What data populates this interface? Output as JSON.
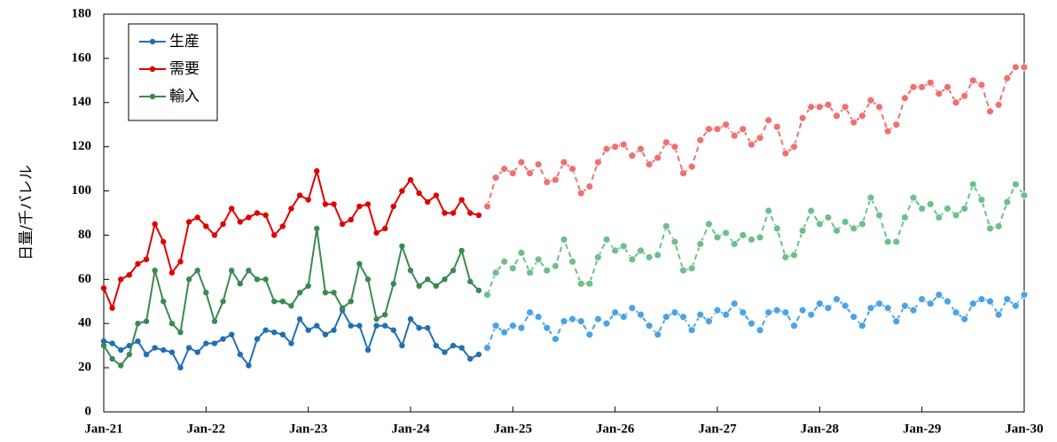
{
  "chart_data": {
    "type": "line",
    "ylabel": "日量/千バレル",
    "categories": [
      "Jan-21",
      null,
      null,
      null,
      null,
      null,
      null,
      null,
      null,
      null,
      null,
      null,
      "Jan-22",
      null,
      null,
      null,
      null,
      null,
      null,
      null,
      null,
      null,
      null,
      null,
      "Jan-23",
      null,
      null,
      null,
      null,
      null,
      null,
      null,
      null,
      null,
      null,
      null,
      "Jan-24",
      null,
      null,
      null,
      null,
      null,
      null,
      null,
      null,
      null,
      null,
      null,
      "Jan-25",
      null,
      null,
      null,
      null,
      null,
      null,
      null,
      null,
      null,
      null,
      null,
      "Jan-26",
      null,
      null,
      null,
      null,
      null,
      null,
      null,
      null,
      null,
      null,
      null,
      "Jan-27",
      null,
      null,
      null,
      null,
      null,
      null,
      null,
      null,
      null,
      null,
      null,
      "Jan-28",
      null,
      null,
      null,
      null,
      null,
      null,
      null,
      null,
      null,
      null,
      null,
      "Jan-29",
      null,
      null,
      null,
      null,
      null,
      null,
      null,
      null,
      null,
      null,
      null,
      "Jan-30"
    ],
    "ylim": [
      0,
      180
    ],
    "yticks": [
      0,
      20,
      40,
      60,
      80,
      100,
      120,
      140,
      160,
      180
    ],
    "legend": "upper left",
    "series": [
      {
        "name": "生産",
        "color": "#1f6fb5",
        "dashed": false,
        "values": [
          32,
          31,
          28,
          30,
          32,
          26,
          29,
          28,
          27,
          20,
          29,
          27,
          31,
          31,
          33,
          35,
          26,
          21,
          33,
          37,
          36,
          35,
          31,
          42,
          37,
          39,
          35,
          37,
          46,
          39,
          39,
          28,
          39,
          39,
          37,
          30,
          42,
          38,
          38,
          30,
          27,
          30,
          29,
          24,
          26,
          null,
          null,
          null,
          null,
          null,
          null,
          null,
          null,
          null,
          null,
          null,
          null,
          null,
          null,
          null,
          null,
          null,
          null,
          null,
          null,
          null,
          null,
          null,
          null,
          null,
          null,
          null,
          null,
          null,
          null,
          null,
          null,
          null,
          null,
          null,
          null,
          null,
          null,
          null,
          null,
          null,
          null,
          null,
          null,
          null,
          null,
          null,
          null,
          null,
          null,
          null,
          null,
          null,
          null,
          null,
          null,
          null,
          null,
          null,
          null,
          null,
          null,
          null,
          null
        ]
      },
      {
        "name": "需要",
        "color": "#e00000",
        "dashed": false,
        "values": [
          56,
          47,
          60,
          62,
          67,
          69,
          85,
          77,
          63,
          68,
          86,
          88,
          84,
          80,
          85,
          92,
          86,
          88,
          90,
          89,
          80,
          84,
          92,
          98,
          96,
          109,
          94,
          94,
          85,
          87,
          93,
          94,
          81,
          83,
          93,
          100,
          105,
          99,
          95,
          98,
          90,
          90,
          96,
          90,
          89,
          null,
          null,
          null,
          null,
          null,
          null,
          null,
          null,
          null,
          null,
          null,
          null,
          null,
          null,
          null,
          null,
          null,
          null,
          null,
          null,
          null,
          null,
          null,
          null,
          null,
          null,
          null,
          null,
          null,
          null,
          null,
          null,
          null,
          null,
          null,
          null,
          null,
          null,
          null,
          null,
          null,
          null,
          null,
          null,
          null,
          null,
          null,
          null,
          null,
          null,
          null,
          null,
          null,
          null,
          null,
          null,
          null,
          null,
          null,
          null,
          null,
          null,
          null,
          null
        ]
      },
      {
        "name": "輸入",
        "color": "#3a8a50",
        "dashed": false,
        "values": [
          30,
          24,
          21,
          26,
          40,
          41,
          64,
          50,
          40,
          36,
          60,
          64,
          54,
          41,
          50,
          64,
          58,
          64,
          60,
          60,
          50,
          50,
          48,
          54,
          57,
          83,
          54,
          54,
          47,
          50,
          67,
          60,
          42,
          44,
          58,
          75,
          64,
          57,
          60,
          57,
          60,
          64,
          73,
          59,
          55,
          null,
          null,
          null,
          null,
          null,
          null,
          null,
          null,
          null,
          null,
          null,
          null,
          null,
          null,
          null,
          null,
          null,
          null,
          null,
          null,
          null,
          null,
          null,
          null,
          null,
          null,
          null,
          null,
          null,
          null,
          null,
          null,
          null,
          null,
          null,
          null,
          null,
          null,
          null,
          null,
          null,
          null,
          null,
          null,
          null,
          null,
          null,
          null,
          null,
          null,
          null,
          null,
          null,
          null,
          null,
          null,
          null,
          null,
          null,
          null,
          null,
          null,
          null,
          null
        ]
      },
      {
        "color": "#4aa3e8",
        "dashed": true,
        "values": [
          null,
          null,
          null,
          null,
          null,
          null,
          null,
          null,
          null,
          null,
          null,
          null,
          null,
          null,
          null,
          null,
          null,
          null,
          null,
          null,
          null,
          null,
          null,
          null,
          null,
          null,
          null,
          null,
          null,
          null,
          null,
          null,
          null,
          null,
          null,
          null,
          null,
          null,
          null,
          null,
          null,
          null,
          null,
          null,
          null,
          29,
          39,
          36,
          39,
          38,
          45,
          43,
          38,
          33,
          41,
          42,
          41,
          35,
          42,
          40,
          45,
          43,
          47,
          44,
          39,
          35,
          43,
          45,
          43,
          37,
          44,
          41,
          46,
          44,
          49,
          45,
          40,
          37,
          45,
          46,
          45,
          39,
          46,
          44,
          49,
          47,
          51,
          48,
          43,
          39,
          47,
          49,
          47,
          41,
          48,
          46,
          51,
          49,
          53,
          50,
          45,
          42,
          49,
          51,
          50,
          44,
          51,
          48,
          53
        ]
      },
      {
        "color": "#f07070",
        "dashed": true,
        "values": [
          null,
          null,
          null,
          null,
          null,
          null,
          null,
          null,
          null,
          null,
          null,
          null,
          null,
          null,
          null,
          null,
          null,
          null,
          null,
          null,
          null,
          null,
          null,
          null,
          null,
          null,
          null,
          null,
          null,
          null,
          null,
          null,
          null,
          null,
          null,
          null,
          null,
          null,
          null,
          null,
          null,
          null,
          null,
          null,
          null,
          93,
          106,
          110,
          108,
          113,
          108,
          112,
          104,
          105,
          113,
          110,
          99,
          102,
          113,
          119,
          120,
          121,
          116,
          119,
          112,
          115,
          122,
          120,
          108,
          111,
          123,
          128,
          128,
          130,
          125,
          128,
          121,
          124,
          132,
          129,
          117,
          120,
          133,
          138,
          138,
          139,
          134,
          138,
          131,
          134,
          141,
          138,
          127,
          130,
          142,
          147,
          147,
          149,
          144,
          147,
          140,
          143,
          150,
          148,
          136,
          139,
          151,
          156,
          156
        ]
      },
      {
        "color": "#6cc08a",
        "dashed": true,
        "values": [
          null,
          null,
          null,
          null,
          null,
          null,
          null,
          null,
          null,
          null,
          null,
          null,
          null,
          null,
          null,
          null,
          null,
          null,
          null,
          null,
          null,
          null,
          null,
          null,
          null,
          null,
          null,
          null,
          null,
          null,
          null,
          null,
          null,
          null,
          null,
          null,
          null,
          null,
          null,
          null,
          null,
          null,
          null,
          null,
          null,
          53,
          63,
          68,
          65,
          72,
          63,
          69,
          64,
          66,
          78,
          68,
          58,
          58,
          70,
          78,
          73,
          75,
          69,
          73,
          70,
          71,
          84,
          77,
          64,
          65,
          76,
          85,
          79,
          81,
          76,
          80,
          78,
          79,
          91,
          83,
          70,
          71,
          82,
          91,
          85,
          88,
          82,
          86,
          83,
          85,
          97,
          89,
          77,
          77,
          88,
          97,
          92,
          94,
          88,
          92,
          89,
          92,
          103,
          96,
          83,
          84,
          95,
          103,
          98
        ]
      }
    ]
  }
}
